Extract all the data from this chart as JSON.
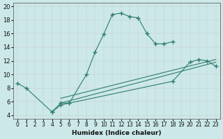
{
  "xlabel": "Humidex (Indice chaleur)",
  "bg_color": "#cce8e8",
  "grid_color": "#b0d0d0",
  "line_color": "#2d7d6e",
  "xlim": [
    -0.5,
    23.5
  ],
  "ylim": [
    3.5,
    20.5
  ],
  "xticks": [
    0,
    1,
    2,
    3,
    4,
    5,
    6,
    7,
    8,
    9,
    10,
    11,
    12,
    13,
    14,
    15,
    16,
    17,
    18,
    19,
    20,
    21,
    22,
    23
  ],
  "yticks": [
    4,
    6,
    8,
    10,
    12,
    14,
    16,
    18,
    20
  ],
  "series1_x": [
    0,
    1,
    4,
    5,
    6,
    8,
    9,
    10,
    11,
    12,
    13,
    14,
    15,
    16,
    17,
    18
  ],
  "series1_y": [
    8.7,
    8.0,
    4.5,
    5.8,
    5.8,
    10.0,
    13.3,
    15.9,
    18.8,
    19.0,
    18.5,
    18.3,
    16.0,
    14.5,
    14.5,
    14.8
  ],
  "series2_x": [
    4,
    5,
    6,
    18,
    20,
    21,
    22,
    23
  ],
  "series2_y": [
    4.5,
    5.5,
    5.8,
    9.0,
    11.8,
    12.2,
    12.0,
    11.2
  ],
  "line1_x": [
    5,
    23
  ],
  "line1_y": [
    5.8,
    11.8
  ],
  "line2_x": [
    5,
    23
  ],
  "line2_y": [
    6.5,
    12.2
  ],
  "line3_x": [
    5,
    18,
    23
  ],
  "line3_y": [
    6.5,
    9.0,
    12.2
  ]
}
